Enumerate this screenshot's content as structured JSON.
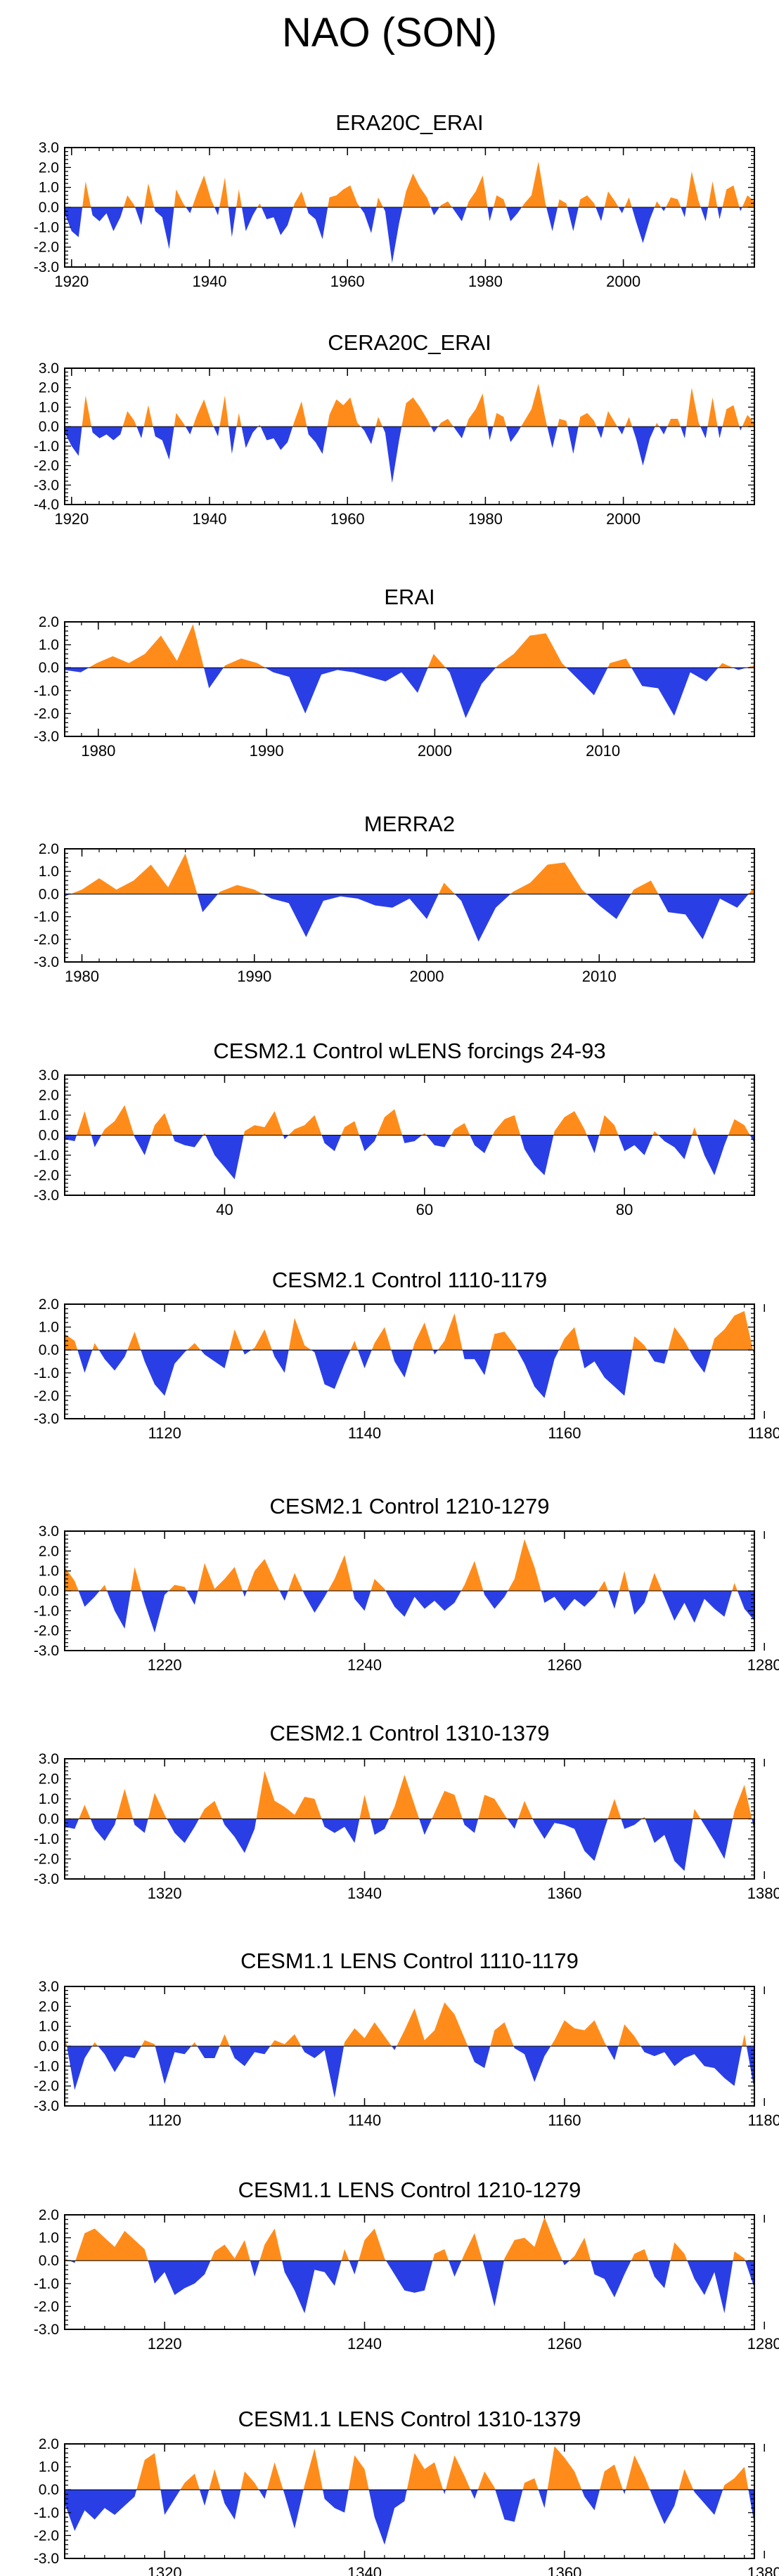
{
  "figure_title": "NAO (SON)",
  "colors": {
    "positive": "#ff8c1a",
    "negative": "#2a3ee6",
    "axis": "#000000"
  },
  "chart_data": [
    {
      "type": "area",
      "title": "ERA20C_ERAI",
      "xlim": [
        1919,
        2019
      ],
      "xticks": [
        1920,
        1940,
        1960,
        1980,
        2000
      ],
      "yticks": [
        3.0,
        2.0,
        1.0,
        0.0,
        -1.0,
        -2.0,
        -3.0
      ],
      "ylim": [
        -3.0,
        3.0
      ],
      "values": [
        -0.3,
        -1.2,
        -1.5,
        1.3,
        -0.4,
        -0.7,
        -0.3,
        -1.2,
        -0.5,
        0.6,
        0.1,
        -0.9,
        1.2,
        -0.2,
        -0.5,
        -2.1,
        0.9,
        0.2,
        -0.3,
        0.7,
        1.6,
        0.4,
        -0.4,
        1.5,
        -1.5,
        0.9,
        -1.2,
        -0.4,
        0.2,
        -0.6,
        -0.5,
        -1.4,
        -0.9,
        0.2,
        0.8,
        -0.3,
        -0.6,
        -1.6,
        0.5,
        0.6,
        0.9,
        1.1,
        0.2,
        -0.3,
        -1.3,
        0.5,
        -0.2,
        -2.8,
        -0.8,
        0.8,
        1.7,
        1.0,
        0.5,
        -0.4,
        0.1,
        0.3,
        -0.2,
        -0.7,
        0.3,
        0.8,
        1.6,
        -0.7,
        0.6,
        0.4,
        -0.7,
        -0.3,
        0.2,
        0.6,
        2.3,
        0.2,
        -1.2,
        0.4,
        0.2,
        -1.2,
        0.4,
        0.6,
        0.2,
        -0.7,
        0.8,
        0.3,
        -0.3,
        0.5,
        -0.7,
        -1.8,
        -0.6,
        0.3,
        -0.2,
        0.5,
        0.4,
        -0.5,
        1.8,
        0.3,
        -0.7,
        1.3,
        -0.6,
        0.9,
        1.1,
        -0.2,
        0.6,
        0.3
      ]
    },
    {
      "type": "area",
      "title": "CERA20C_ERAI",
      "xlim": [
        1919,
        2019
      ],
      "xticks": [
        1920,
        1940,
        1960,
        1980,
        2000
      ],
      "yticks": [
        3.0,
        2.0,
        1.0,
        0.0,
        -1.0,
        -2.0,
        -3.0,
        -4.0
      ],
      "ylim": [
        -4.0,
        3.0
      ],
      "values": [
        -0.3,
        -1.0,
        -1.5,
        1.6,
        -0.3,
        -0.6,
        -0.4,
        -0.7,
        -0.4,
        0.8,
        0.3,
        -0.6,
        1.1,
        -0.5,
        -0.7,
        -1.7,
        0.7,
        0.2,
        -0.4,
        0.6,
        1.4,
        0.3,
        -0.5,
        1.6,
        -1.4,
        0.7,
        -1.1,
        -0.3,
        0.1,
        -0.7,
        -0.6,
        -1.2,
        -0.8,
        0.3,
        1.3,
        -0.4,
        -0.8,
        -1.4,
        0.6,
        1.4,
        1.1,
        1.5,
        0.2,
        -0.2,
        -0.9,
        0.5,
        -0.3,
        -2.9,
        -0.7,
        1.2,
        1.5,
        1.0,
        0.4,
        -0.3,
        0.2,
        0.4,
        -0.1,
        -0.6,
        0.4,
        0.9,
        1.7,
        -0.7,
        0.7,
        0.5,
        -0.8,
        -0.3,
        0.3,
        0.9,
        2.2,
        0.4,
        -1.1,
        0.4,
        0.3,
        -1.4,
        0.5,
        0.7,
        0.3,
        -0.6,
        0.8,
        0.2,
        -0.4,
        0.5,
        -0.6,
        -2.0,
        -0.6,
        0.2,
        -0.4,
        0.4,
        0.4,
        -0.6,
        2.0,
        0.2,
        -0.6,
        1.5,
        -0.6,
        0.9,
        1.1,
        -0.2,
        0.6,
        0.2
      ]
    },
    {
      "type": "area",
      "title": "ERAI",
      "xlim": [
        1978,
        2019
      ],
      "xticks": [
        1980,
        1990,
        2000,
        2010
      ],
      "yticks": [
        2.0,
        1.0,
        0.0,
        -1.0,
        -2.0,
        -3.0
      ],
      "ylim": [
        -3.0,
        2.0
      ],
      "values": [
        -0.1,
        -0.2,
        0.2,
        0.5,
        0.2,
        0.6,
        1.4,
        0.3,
        1.9,
        -0.9,
        0.1,
        0.4,
        0.2,
        -0.2,
        -0.4,
        -2.0,
        -0.3,
        -0.1,
        -0.2,
        -0.4,
        -0.6,
        -0.2,
        -1.1,
        0.6,
        -0.2,
        -2.2,
        -0.7,
        0.1,
        0.6,
        1.4,
        1.5,
        0.2,
        -0.5,
        -1.2,
        0.2,
        0.4,
        -0.8,
        -0.9,
        -2.1,
        -0.2,
        -0.6,
        0.2,
        -0.1,
        0.1
      ]
    },
    {
      "type": "area",
      "title": "MERRA2",
      "xlim": [
        1979,
        2019
      ],
      "xticks": [
        1980,
        1990,
        2000,
        2010
      ],
      "yticks": [
        2.0,
        1.0,
        0.0,
        -1.0,
        -2.0,
        -3.0
      ],
      "ylim": [
        -3.0,
        2.0
      ],
      "values": [
        -0.1,
        0.2,
        0.7,
        0.2,
        0.6,
        1.3,
        0.3,
        1.8,
        -0.8,
        0.1,
        0.4,
        0.2,
        -0.2,
        -0.4,
        -1.9,
        -0.3,
        -0.1,
        -0.2,
        -0.5,
        -0.6,
        -0.2,
        -1.1,
        0.5,
        -0.3,
        -2.1,
        -0.6,
        0.1,
        0.5,
        1.3,
        1.4,
        0.2,
        -0.5,
        -1.1,
        0.2,
        0.6,
        -0.8,
        -0.9,
        -2.0,
        -0.2,
        -0.6,
        0.3
      ]
    },
    {
      "type": "area",
      "title": "CESM2.1 Control wLENS forcings 24-93",
      "xlim": [
        24,
        93
      ],
      "xticks": [
        40,
        60,
        80
      ],
      "yticks": [
        3.0,
        2.0,
        1.0,
        0.0,
        -1.0,
        -2.0,
        -3.0
      ],
      "ylim": [
        -3.0,
        3.0
      ],
      "values": [
        -0.2,
        -0.3,
        1.2,
        -0.6,
        0.3,
        0.7,
        1.5,
        -0.1,
        -1.0,
        0.5,
        1.1,
        -0.3,
        -0.5,
        -0.6,
        0.1,
        -1.0,
        -1.6,
        -2.2,
        0.2,
        0.5,
        0.4,
        1.2,
        -0.2,
        0.3,
        0.5,
        1.0,
        -0.4,
        -0.8,
        0.4,
        0.7,
        -0.8,
        -0.3,
        0.9,
        1.3,
        -0.4,
        -0.3,
        0.1,
        -0.5,
        -0.6,
        0.3,
        0.6,
        -0.5,
        -0.9,
        0.2,
        0.8,
        1.0,
        -0.7,
        -1.5,
        -2.0,
        0.2,
        0.9,
        1.2,
        0.3,
        -0.9,
        1.0,
        0.5,
        -0.8,
        -0.5,
        -1.0,
        0.2,
        -0.3,
        -0.6,
        -1.2,
        0.4,
        -1.0,
        -2.0,
        -0.5,
        0.8,
        0.5,
        -0.4
      ]
    },
    {
      "type": "area",
      "title": "CESM2.1 Control 1110-1179",
      "xlim": [
        1110,
        1179
      ],
      "xticks": [
        1120,
        1140,
        1160,
        1180
      ],
      "yticks": [
        2.0,
        1.0,
        0.0,
        -1.0,
        -2.0,
        -3.0
      ],
      "ylim": [
        -3.0,
        2.0
      ],
      "values": [
        0.7,
        0.4,
        -1.0,
        0.3,
        -0.4,
        -0.9,
        -0.3,
        0.8,
        -0.5,
        -1.5,
        -2.0,
        -0.6,
        -0.1,
        0.3,
        -0.2,
        -0.5,
        -0.8,
        0.9,
        -0.2,
        0.1,
        0.9,
        -0.3,
        -1.0,
        1.4,
        0.2,
        -0.1,
        -1.5,
        -1.7,
        -0.6,
        0.4,
        -0.8,
        0.3,
        1.0,
        -0.5,
        -1.2,
        0.3,
        1.2,
        -0.2,
        0.4,
        1.6,
        -0.4,
        -0.4,
        -1.1,
        0.7,
        0.8,
        0.2,
        -0.6,
        -1.6,
        -2.1,
        -0.4,
        0.5,
        1.0,
        -0.8,
        -0.5,
        -1.2,
        -1.6,
        -2.0,
        0.6,
        0.2,
        -0.5,
        -0.6,
        1.0,
        0.4,
        -0.4,
        -1.0,
        0.5,
        0.9,
        1.5,
        1.7,
        -0.3
      ]
    },
    {
      "type": "area",
      "title": "CESM2.1 Control 1210-1279",
      "xlim": [
        1210,
        1279
      ],
      "xticks": [
        1220,
        1240,
        1260,
        1280
      ],
      "yticks": [
        3.0,
        2.0,
        1.0,
        0.0,
        -1.0,
        -2.0,
        -3.0
      ],
      "ylim": [
        -3.0,
        3.0
      ],
      "values": [
        1.2,
        0.5,
        -0.8,
        -0.3,
        0.3,
        -1.0,
        -1.9,
        1.2,
        -0.6,
        -2.1,
        -0.2,
        0.3,
        0.2,
        -0.7,
        1.4,
        0.1,
        0.6,
        1.2,
        -0.3,
        1.0,
        1.6,
        0.5,
        -0.5,
        0.9,
        -0.2,
        -1.1,
        -0.3,
        0.6,
        1.8,
        -0.4,
        -1.0,
        0.6,
        0.1,
        -0.8,
        -1.3,
        -0.3,
        -0.9,
        -0.5,
        -1.0,
        -0.6,
        0.3,
        1.5,
        -0.2,
        -0.9,
        -0.3,
        0.6,
        2.6,
        1.2,
        -0.6,
        -0.3,
        -1.0,
        -0.4,
        -0.8,
        -0.3,
        0.5,
        -0.9,
        1.0,
        -1.2,
        -0.6,
        0.9,
        -0.3,
        -1.5,
        -0.6,
        -1.6,
        -0.4,
        -0.9,
        -1.3,
        0.4,
        -0.9,
        -1.5
      ]
    },
    {
      "type": "area",
      "title": "CESM2.1 Control 1310-1379",
      "xlim": [
        1310,
        1379
      ],
      "xticks": [
        1320,
        1340,
        1360,
        1380
      ],
      "yticks": [
        3.0,
        2.0,
        1.0,
        0.0,
        -1.0,
        -2.0,
        -3.0
      ],
      "ylim": [
        -3.0,
        3.0
      ],
      "values": [
        -0.4,
        -0.5,
        0.7,
        -0.5,
        -1.1,
        -0.3,
        1.5,
        -0.3,
        -0.7,
        1.3,
        0.2,
        -0.7,
        -1.2,
        -0.4,
        0.5,
        0.9,
        -0.3,
        -0.9,
        -1.7,
        -0.5,
        2.4,
        0.9,
        0.6,
        0.2,
        1.1,
        1.0,
        -0.4,
        -0.7,
        -0.4,
        -1.2,
        1.2,
        -0.8,
        -0.5,
        0.6,
        2.2,
        0.7,
        -0.8,
        0.3,
        1.4,
        1.2,
        -0.3,
        -0.7,
        1.2,
        1.0,
        0.2,
        -0.5,
        0.9,
        -0.2,
        -1.0,
        -0.2,
        -0.3,
        -0.5,
        -1.6,
        -2.1,
        -0.5,
        1.0,
        -0.5,
        -0.3,
        0.1,
        -1.2,
        -0.8,
        -2.1,
        -2.6,
        0.5,
        -0.3,
        -1.1,
        -2.0,
        0.4,
        1.7,
        -0.6
      ]
    },
    {
      "type": "area",
      "title": "CESM1.1 LENS Control 1110-1179",
      "xlim": [
        1110,
        1179
      ],
      "xticks": [
        1120,
        1140,
        1160,
        1180
      ],
      "yticks": [
        3.0,
        2.0,
        1.0,
        0.0,
        -1.0,
        -2.0,
        -3.0
      ],
      "ylim": [
        -3.0,
        3.0
      ],
      "values": [
        0.6,
        -2.2,
        -0.6,
        0.2,
        -0.4,
        -1.3,
        -0.5,
        -0.6,
        0.3,
        0.1,
        -1.9,
        -0.3,
        -0.4,
        0.2,
        -0.6,
        -0.6,
        0.6,
        -0.6,
        -1.0,
        -0.3,
        -0.4,
        0.3,
        0.1,
        0.6,
        -0.3,
        -0.6,
        -0.2,
        -2.6,
        0.2,
        0.9,
        0.4,
        1.2,
        0.5,
        -0.2,
        0.8,
        1.9,
        0.3,
        0.8,
        2.2,
        1.6,
        0.4,
        -0.8,
        -1.1,
        0.8,
        1.2,
        -0.1,
        -0.4,
        -1.8,
        -0.5,
        0.3,
        1.3,
        0.9,
        0.8,
        1.3,
        0.2,
        -0.7,
        1.1,
        0.5,
        -0.3,
        -0.5,
        -0.3,
        -1.0,
        -0.6,
        -0.4,
        -1.0,
        -1.1,
        -1.6,
        -2.0,
        0.6,
        -2.2
      ]
    },
    {
      "type": "area",
      "title": "CESM1.1 LENS Control 1210-1279",
      "xlim": [
        1210,
        1279
      ],
      "xticks": [
        1220,
        1240,
        1260,
        1280
      ],
      "yticks": [
        2.0,
        1.0,
        0.0,
        -1.0,
        -2.0,
        -3.0
      ],
      "ylim": [
        -3.0,
        2.0
      ],
      "values": [
        0.1,
        -0.1,
        1.2,
        1.4,
        1.0,
        0.6,
        1.3,
        0.9,
        0.5,
        -1.0,
        -0.5,
        -1.5,
        -1.2,
        -1.0,
        -0.6,
        0.4,
        0.7,
        0.1,
        0.9,
        -0.7,
        0.7,
        1.4,
        -0.5,
        -1.3,
        -2.3,
        -0.4,
        -0.5,
        -1.1,
        0.5,
        -0.6,
        0.9,
        1.4,
        0.1,
        -0.6,
        -1.3,
        -1.4,
        -1.3,
        0.3,
        0.5,
        -0.7,
        0.3,
        1.2,
        -0.3,
        -2.0,
        0.1,
        0.9,
        1.0,
        0.6,
        1.9,
        0.8,
        -0.2,
        0.2,
        1.0,
        -0.6,
        -0.8,
        -1.6,
        -0.6,
        0.3,
        0.5,
        -0.7,
        -1.2,
        0.8,
        0.3,
        -0.8,
        -1.5,
        -0.5,
        -2.3,
        0.4,
        0.1,
        -1.2
      ]
    },
    {
      "type": "area",
      "title": "CESM1.1 LENS Control 1310-1379",
      "xlim": [
        1310,
        1379
      ],
      "xticks": [
        1320,
        1340,
        1360,
        1380
      ],
      "yticks": [
        2.0,
        1.0,
        0.0,
        -1.0,
        -2.0,
        -3.0
      ],
      "ylim": [
        -3.0,
        2.0
      ],
      "values": [
        -0.6,
        -1.8,
        -0.9,
        -1.3,
        -0.8,
        -1.1,
        -0.7,
        -0.3,
        1.3,
        1.6,
        -1.1,
        -0.4,
        0.3,
        0.7,
        -0.7,
        0.9,
        -0.6,
        -1.3,
        0.8,
        0.3,
        -0.4,
        1.2,
        -0.2,
        -1.7,
        0.2,
        1.8,
        -0.4,
        -0.8,
        -1.0,
        1.5,
        0.9,
        -1.2,
        -2.4,
        -0.8,
        -0.5,
        1.6,
        0.9,
        1.2,
        -0.2,
        1.5,
        0.6,
        -0.4,
        0.8,
        0.1,
        -1.3,
        -1.4,
        0.3,
        0.5,
        -0.8,
        1.9,
        1.4,
        0.8,
        -0.3,
        -0.9,
        0.8,
        1.1,
        -0.2,
        1.5,
        0.6,
        -0.5,
        -1.5,
        -0.7,
        0.9,
        -0.1,
        -0.6,
        -1.1,
        0.2,
        0.5,
        1.0,
        -1.5
      ]
    }
  ]
}
